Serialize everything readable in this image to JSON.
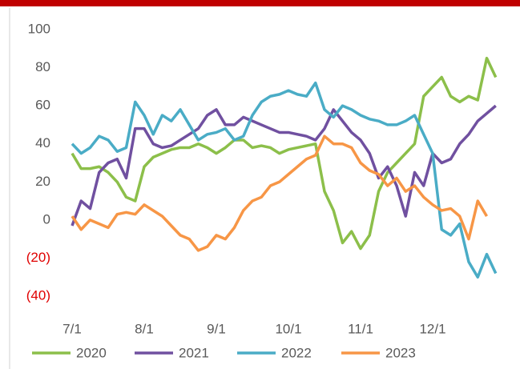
{
  "chart_data": {
    "type": "line",
    "categories": [
      "7/1",
      null,
      null,
      null,
      null,
      null,
      null,
      null,
      "8/1",
      null,
      null,
      null,
      null,
      null,
      null,
      null,
      "9/1",
      null,
      null,
      null,
      null,
      null,
      null,
      null,
      "10/1",
      null,
      null,
      null,
      null,
      null,
      null,
      null,
      "11/1",
      null,
      null,
      null,
      null,
      null,
      null,
      null,
      "12/1",
      null,
      null,
      null,
      null,
      null,
      null,
      null
    ],
    "series": [
      {
        "name": "2020",
        "color": "#8cbf4a",
        "values": [
          35,
          27,
          27,
          28,
          25,
          20,
          12,
          10,
          28,
          33,
          35,
          37,
          38,
          38,
          40,
          38,
          35,
          38,
          42,
          42,
          38,
          39,
          38,
          35,
          37,
          38,
          39,
          40,
          15,
          5,
          -12,
          -6,
          -15,
          -8,
          15,
          25,
          30,
          35,
          40,
          65,
          70,
          75,
          65,
          62,
          65,
          63,
          85,
          75
        ]
      },
      {
        "name": "2021",
        "color": "#7050a0",
        "values": [
          -3,
          10,
          6,
          25,
          30,
          32,
          22,
          48,
          48,
          40,
          38,
          39,
          42,
          45,
          48,
          55,
          58,
          50,
          50,
          54,
          52,
          50,
          48,
          46,
          46,
          45,
          44,
          42,
          48,
          58,
          52,
          46,
          42,
          35,
          22,
          28,
          18,
          2,
          25,
          18,
          35,
          30,
          32,
          40,
          45,
          52,
          56,
          60
        ]
      },
      {
        "name": "2022",
        "color": "#4aacc6",
        "values": [
          40,
          35,
          38,
          44,
          42,
          36,
          38,
          62,
          55,
          45,
          55,
          52,
          58,
          50,
          42,
          45,
          46,
          48,
          42,
          44,
          55,
          62,
          65,
          66,
          68,
          66,
          65,
          72,
          58,
          54,
          60,
          58,
          55,
          53,
          52,
          50,
          50,
          52,
          55,
          45,
          35,
          -5,
          -8,
          -2,
          -22,
          -30,
          -18,
          -28
        ]
      },
      {
        "name": "2023",
        "color": "#f79646",
        "values": [
          2,
          -5,
          0,
          -2,
          -4,
          3,
          4,
          3,
          8,
          5,
          2,
          -3,
          -8,
          -10,
          -16,
          -14,
          -8,
          -10,
          -4,
          5,
          10,
          12,
          18,
          20,
          24,
          28,
          32,
          34,
          44,
          40,
          40,
          38,
          30,
          26,
          24,
          18,
          22,
          15,
          18,
          12,
          8,
          5,
          6,
          2,
          -10,
          10,
          2,
          null
        ]
      }
    ],
    "ylim": [
      -40,
      100
    ],
    "yticks": [
      {
        "value": -40,
        "label": "(40)"
      },
      {
        "value": -20,
        "label": "(20)"
      },
      0,
      20,
      40,
      60,
      80,
      100
    ],
    "negative_tick_color": "#e00000",
    "grid": false,
    "legend": "bottom"
  }
}
